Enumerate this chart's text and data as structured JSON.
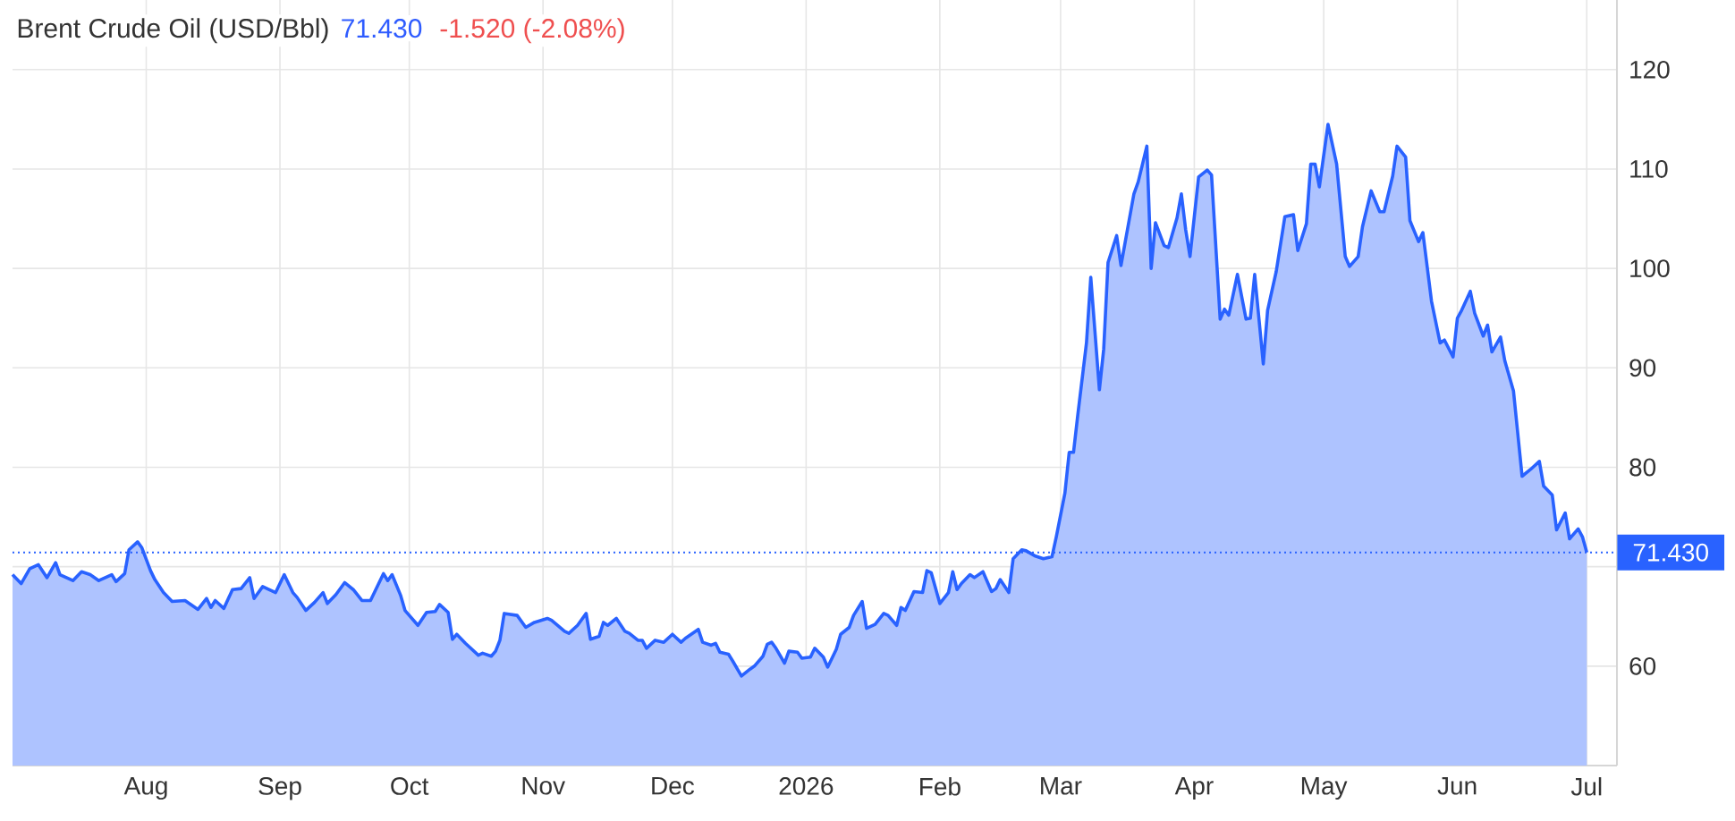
{
  "chart_data": {
    "type": "area",
    "title": "Brent Crude Oil (USD/Bbl)",
    "annotations": [
      "71.430",
      "-1.520 (-2.08%)"
    ],
    "x": [
      "2025-07-01",
      "2025-07-03",
      "2025-07-05",
      "2025-07-07",
      "2025-07-09",
      "2025-07-11",
      "2025-07-12",
      "2025-07-15",
      "2025-07-17",
      "2025-07-19",
      "2025-07-21",
      "2025-07-24",
      "2025-07-25",
      "2025-07-27",
      "2025-07-28",
      "2025-07-30",
      "2025-07-31",
      "2025-08-02",
      "2025-08-03",
      "2025-08-05",
      "2025-08-07",
      "2025-08-10",
      "2025-08-13",
      "2025-08-15",
      "2025-08-16",
      "2025-08-17",
      "2025-08-19",
      "2025-08-21",
      "2025-08-23",
      "2025-08-25",
      "2025-08-26",
      "2025-08-28",
      "2025-08-31",
      "2025-09-02",
      "2025-09-04",
      "2025-09-05",
      "2025-09-07",
      "2025-09-09",
      "2025-09-11",
      "2025-09-12",
      "2025-09-14",
      "2025-09-16",
      "2025-09-18",
      "2025-09-20",
      "2025-09-22",
      "2025-09-23",
      "2025-09-25",
      "2025-09-26",
      "2025-09-27",
      "2025-09-29",
      "2025-09-30",
      "2025-10-03",
      "2025-10-05",
      "2025-10-07",
      "2025-10-08",
      "2025-10-10",
      "2025-10-11",
      "2025-10-12",
      "2025-10-14",
      "2025-10-17",
      "2025-10-18",
      "2025-10-20",
      "2025-10-21",
      "2025-10-22",
      "2025-10-23",
      "2025-10-26",
      "2025-10-28",
      "2025-10-30",
      "2025-11-02",
      "2025-11-03",
      "2025-11-06",
      "2025-11-07",
      "2025-11-09",
      "2025-11-11",
      "2025-11-12",
      "2025-11-14",
      "2025-11-15",
      "2025-11-16",
      "2025-11-18",
      "2025-11-20",
      "2025-11-21",
      "2025-11-23",
      "2025-11-24",
      "2025-11-25",
      "2025-11-27",
      "2025-11-29",
      "2025-12-01",
      "2025-12-03",
      "2025-12-04",
      "2025-12-07",
      "2025-12-08",
      "2025-12-10",
      "2025-12-11",
      "2025-12-12",
      "2025-12-14",
      "2025-12-15",
      "2025-12-17",
      "2025-12-19",
      "2025-12-20",
      "2025-12-22",
      "2025-12-23",
      "2025-12-24",
      "2025-12-25",
      "2025-12-27",
      "2025-12-28",
      "2025-12-30",
      "2025-12-31",
      "2026-01-02",
      "2026-01-03",
      "2026-01-05",
      "2026-01-06",
      "2026-01-08",
      "2026-01-09",
      "2026-01-11",
      "2026-01-12",
      "2026-01-14",
      "2026-01-15",
      "2026-01-17",
      "2026-01-19",
      "2026-01-20",
      "2026-01-22",
      "2026-01-23",
      "2026-01-24",
      "2026-01-26",
      "2026-01-28",
      "2026-01-29",
      "2026-01-30",
      "2026-02-01",
      "2026-02-03",
      "2026-02-04",
      "2026-02-05",
      "2026-02-06",
      "2026-02-08",
      "2026-02-09",
      "2026-02-11",
      "2026-02-13",
      "2026-02-14",
      "2026-02-15",
      "2026-02-17",
      "2026-02-18",
      "2026-02-20",
      "2026-02-21",
      "2026-02-23",
      "2026-02-25",
      "2026-02-27",
      "2026-02-28",
      "2026-03-02",
      "2026-03-03",
      "2026-03-04",
      "2026-03-05",
      "2026-03-07",
      "2026-03-08",
      "2026-03-10",
      "2026-03-11",
      "2026-03-12",
      "2026-03-14",
      "2026-03-15",
      "2026-03-16",
      "2026-03-18",
      "2026-03-19",
      "2026-03-21",
      "2026-03-22",
      "2026-03-23",
      "2026-03-25",
      "2026-03-26",
      "2026-03-28",
      "2026-03-29",
      "2026-03-30",
      "2026-03-31",
      "2026-04-02",
      "2026-04-04",
      "2026-04-05",
      "2026-04-07",
      "2026-04-08",
      "2026-04-09",
      "2026-04-11",
      "2026-04-13",
      "2026-04-14",
      "2026-04-15",
      "2026-04-17",
      "2026-04-18",
      "2026-04-20",
      "2026-04-22",
      "2026-04-24",
      "2026-04-25",
      "2026-04-27",
      "2026-04-28",
      "2026-04-29",
      "2026-04-30",
      "2026-05-02",
      "2026-05-04",
      "2026-05-06",
      "2026-05-07",
      "2026-05-09",
      "2026-05-10",
      "2026-05-12",
      "2026-05-14",
      "2026-05-15",
      "2026-05-17",
      "2026-05-18",
      "2026-05-20",
      "2026-05-21",
      "2026-05-23",
      "2026-05-24",
      "2026-05-26",
      "2026-05-28",
      "2026-05-29",
      "2026-05-31",
      "2026-06-01",
      "2026-06-02",
      "2026-06-04",
      "2026-06-05",
      "2026-06-07",
      "2026-06-08",
      "2026-06-09",
      "2026-06-11",
      "2026-06-12",
      "2026-06-14",
      "2026-06-16",
      "2026-06-18",
      "2026-06-20",
      "2026-06-21",
      "2026-06-23",
      "2026-06-24",
      "2026-06-26",
      "2026-06-27",
      "2026-06-29",
      "2026-06-30",
      "2026-07-01"
    ],
    "series": [
      {
        "color": "#2962ff",
        "values": [
          69.2,
          68.3,
          69.8,
          70.2,
          68.9,
          70.4,
          69.2,
          68.6,
          69.5,
          69.2,
          68.6,
          69.2,
          68.5,
          69.3,
          71.7,
          72.5,
          71.9,
          69.6,
          68.7,
          67.4,
          66.5,
          66.6,
          65.7,
          66.8,
          65.9,
          66.6,
          65.8,
          67.7,
          67.8,
          68.9,
          66.8,
          68.0,
          67.4,
          69.2,
          67.4,
          66.9,
          65.6,
          66.4,
          67.4,
          66.3,
          67.2,
          68.4,
          67.7,
          66.6,
          66.6,
          67.5,
          69.3,
          68.6,
          69.2,
          67.1,
          65.6,
          64.1,
          65.4,
          65.5,
          66.2,
          65.4,
          62.7,
          63.2,
          62.3,
          61.1,
          61.3,
          61.0,
          61.5,
          62.6,
          65.3,
          65.1,
          63.9,
          64.4,
          64.8,
          64.6,
          63.5,
          63.3,
          64.1,
          65.3,
          62.7,
          63.0,
          64.4,
          64.1,
          64.8,
          63.5,
          63.3,
          62.6,
          62.6,
          61.8,
          62.6,
          62.4,
          63.2,
          62.4,
          62.8,
          63.7,
          62.4,
          62.1,
          62.3,
          61.4,
          61.2,
          60.5,
          59.0,
          59.7,
          60.0,
          61.0,
          62.2,
          62.4,
          61.8,
          60.3,
          61.5,
          61.4,
          60.8,
          60.9,
          61.8,
          60.9,
          59.9,
          61.7,
          63.2,
          63.9,
          65.1,
          66.5,
          63.8,
          64.2,
          65.3,
          65.1,
          64.1,
          65.9,
          65.6,
          67.5,
          67.4,
          69.6,
          69.4,
          66.3,
          67.4,
          69.5,
          67.7,
          68.3,
          69.2,
          68.9,
          69.5,
          67.5,
          67.8,
          68.7,
          67.4,
          70.8,
          71.7,
          71.6,
          71.1,
          70.8,
          71.0,
          73.0,
          77.4,
          81.5,
          81.5,
          85.3,
          92.5,
          99.1,
          87.8,
          91.9,
          100.6,
          103.3,
          100.3,
          102.7,
          107.5,
          108.7,
          112.3,
          100.0,
          104.6,
          102.3,
          102.1,
          105.1,
          107.5,
          103.9,
          101.2,
          109.2,
          109.9,
          109.4,
          94.9,
          95.9,
          95.3,
          99.4,
          94.9,
          95.0,
          99.4,
          90.4,
          95.8,
          99.7,
          105.2,
          105.4,
          101.8,
          104.5,
          110.5,
          110.5,
          108.2,
          114.5,
          110.5,
          101.2,
          100.2,
          101.2,
          104.2,
          107.8,
          105.7,
          105.7,
          109.3,
          112.3,
          111.2,
          104.8,
          102.7,
          103.6,
          96.7,
          92.5,
          92.8,
          91.1,
          95.0,
          95.8,
          97.7,
          95.5,
          93.2,
          94.3,
          91.6,
          93.1,
          90.7,
          87.7,
          79.1,
          79.8,
          80.6,
          78.1,
          77.2,
          73.7,
          75.4,
          72.8,
          73.8,
          73.0,
          71.43
        ]
      }
    ],
    "xlim": [
      "2025-07-01",
      "2026-07-08"
    ],
    "ylim": [
      50,
      127
    ],
    "xticks": [
      {
        "value": "2025-08-01",
        "label": "Aug"
      },
      {
        "value": "2025-09-01",
        "label": "Sep"
      },
      {
        "value": "2025-10-01",
        "label": "Oct"
      },
      {
        "value": "2025-11-01",
        "label": "Nov"
      },
      {
        "value": "2025-12-01",
        "label": "Dec"
      },
      {
        "value": "2026-01-01",
        "label": "2026"
      },
      {
        "value": "2026-02-01",
        "label": "Feb"
      },
      {
        "value": "2026-03-01",
        "label": "Mar"
      },
      {
        "value": "2026-04-01",
        "label": "Apr"
      },
      {
        "value": "2026-05-01",
        "label": "May"
      },
      {
        "value": "2026-06-01",
        "label": "Jun"
      },
      {
        "value": "2026-07-01",
        "label": "Jul"
      }
    ],
    "yticks": [
      60,
      {
        "value": 70,
        "label": null
      },
      80,
      90,
      100,
      110,
      120
    ],
    "grid": true,
    "ref_lines": [
      {
        "axis": "y",
        "value": 71.43,
        "label": "71.430",
        "color": "#2962ff",
        "line_style": "dotted"
      }
    ]
  }
}
